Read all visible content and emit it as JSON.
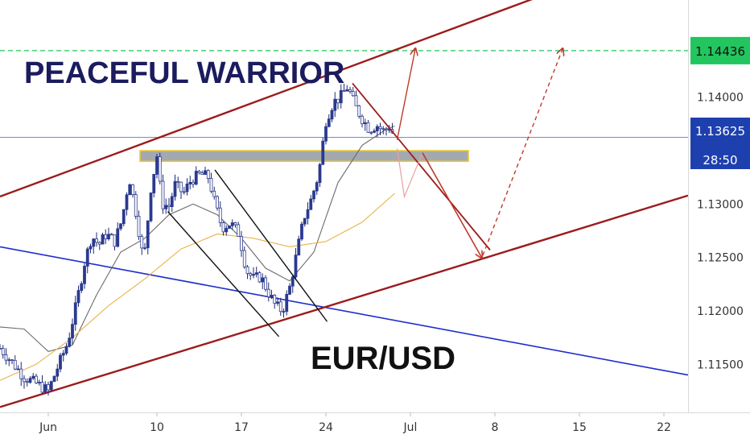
{
  "chart_data": {
    "type": "candlestick",
    "title": "PEACEFUL WARRIOR",
    "symbol_label": "EUR/USD",
    "x_axis": {
      "ticks": [
        {
          "label": "Jun",
          "day": 0
        },
        {
          "label": "10",
          "day": 9
        },
        {
          "label": "17",
          "day": 16
        },
        {
          "label": "24",
          "day": 23
        },
        {
          "label": "Jul",
          "day": 30
        },
        {
          "label": "8",
          "day": 37
        },
        {
          "label": "15",
          "day": 44
        },
        {
          "label": "22",
          "day": 51
        }
      ],
      "range_days": [
        -4,
        53
      ]
    },
    "y_axis": {
      "ticks": [
        "1.11500",
        "1.12000",
        "1.12500",
        "1.13000",
        "1.14000"
      ],
      "tick_values": [
        1.115,
        1.12,
        1.125,
        1.13,
        1.14
      ],
      "ylim": [
        1.1105,
        1.1491
      ]
    },
    "price_labels": {
      "target": {
        "text": "1.14436",
        "value": 1.14436,
        "color": "#22c55e"
      },
      "current": {
        "text": "1.13625",
        "value": 1.13625,
        "color": "#1e40af"
      },
      "countdown": {
        "text": "28:50",
        "color": "#1e40af"
      }
    },
    "series": [
      {
        "name": "",
        "kind": "price",
        "points": [
          [
            -4,
            1.1165
          ],
          [
            -3,
            1.1152
          ],
          [
            -2,
            1.1138
          ],
          [
            -1,
            1.1132
          ],
          [
            0,
            1.1125
          ],
          [
            0.8,
            1.1148
          ],
          [
            1.6,
            1.117
          ],
          [
            2.3,
            1.1205
          ],
          [
            3,
            1.1245
          ],
          [
            3.6,
            1.127
          ],
          [
            4.2,
            1.1262
          ],
          [
            4.8,
            1.1272
          ],
          [
            5.5,
            1.1265
          ],
          [
            6.1,
            1.1285
          ],
          [
            6.7,
            1.1325
          ],
          [
            7.3,
            1.129
          ],
          [
            7.9,
            1.1245
          ],
          [
            8.5,
            1.1315
          ],
          [
            9,
            1.1345
          ],
          [
            9.4,
            1.13
          ],
          [
            10,
            1.1298
          ],
          [
            10.5,
            1.1318
          ],
          [
            11.2,
            1.131
          ],
          [
            11.8,
            1.1322
          ],
          [
            12.6,
            1.1328
          ],
          [
            13.3,
            1.1325
          ],
          [
            13.8,
            1.13
          ],
          [
            14.4,
            1.1278
          ],
          [
            15.1,
            1.1282
          ],
          [
            15.8,
            1.1272
          ],
          [
            16.4,
            1.1238
          ],
          [
            17,
            1.123
          ],
          [
            17.6,
            1.1232
          ],
          [
            18.2,
            1.1218
          ],
          [
            18.8,
            1.1205
          ],
          [
            19.4,
            1.12
          ],
          [
            20,
            1.1222
          ],
          [
            20.6,
            1.1255
          ],
          [
            21.2,
            1.1288
          ],
          [
            21.8,
            1.1305
          ],
          [
            22.4,
            1.1328
          ],
          [
            23,
            1.1378
          ],
          [
            23.6,
            1.1395
          ],
          [
            24.2,
            1.14
          ],
          [
            24.8,
            1.141
          ],
          [
            25.4,
            1.1392
          ],
          [
            26,
            1.138
          ],
          [
            26.6,
            1.137
          ],
          [
            27.2,
            1.1374
          ],
          [
            27.8,
            1.1368
          ],
          [
            28.3,
            1.1373
          ],
          [
            28.7,
            1.1361
          ]
        ]
      },
      {
        "name": "",
        "kind": "ma-fast",
        "color": "#6b6b6b",
        "points": [
          [
            -4,
            1.1185
          ],
          [
            -2,
            1.1183
          ],
          [
            0,
            1.1162
          ],
          [
            2,
            1.1168
          ],
          [
            4,
            1.1215
          ],
          [
            6,
            1.1255
          ],
          [
            8,
            1.1268
          ],
          [
            10,
            1.129
          ],
          [
            12,
            1.13
          ],
          [
            14,
            1.129
          ],
          [
            16,
            1.1268
          ],
          [
            18,
            1.124
          ],
          [
            20,
            1.1228
          ],
          [
            22,
            1.1255
          ],
          [
            24,
            1.132
          ],
          [
            26,
            1.1355
          ],
          [
            28,
            1.137
          ],
          [
            28.7,
            1.1373
          ]
        ]
      },
      {
        "name": "",
        "kind": "ma-slow",
        "color": "#e8b34a",
        "points": [
          [
            -4,
            1.1135
          ],
          [
            -1,
            1.115
          ],
          [
            2,
            1.1175
          ],
          [
            5,
            1.1205
          ],
          [
            8,
            1.123
          ],
          [
            11,
            1.1258
          ],
          [
            14,
            1.1272
          ],
          [
            17,
            1.1268
          ],
          [
            20,
            1.126
          ],
          [
            23,
            1.1265
          ],
          [
            26,
            1.1283
          ],
          [
            28.7,
            1.131
          ]
        ]
      }
    ],
    "drawings": {
      "channel_upper": [
        [
          -4,
          1.1307
        ],
        [
          43,
          1.1504
        ]
      ],
      "channel_lower": [
        [
          -4,
          1.111
        ],
        [
          53,
          1.1308
        ]
      ],
      "blue_trend": [
        [
          -4,
          1.126
        ],
        [
          53,
          1.114
        ]
      ],
      "support_zone": {
        "day_from": 7.6,
        "day_to": 34.8,
        "value_low": 1.134,
        "value_high": 1.135
      },
      "descending_line": [
        [
          25.2,
          1.1413
        ],
        [
          36.6,
          1.1257
        ]
      ],
      "black_channel_upper": [
        [
          13.8,
          1.1332
        ],
        [
          23.1,
          1.119
        ]
      ],
      "black_channel_lower": [
        [
          9.9,
          1.1293
        ],
        [
          19.1,
          1.1176
        ]
      ],
      "arrow_up_target": [
        [
          28.9,
          1.136
        ],
        [
          30.4,
          1.1445
        ]
      ],
      "arrow_down_main": [
        [
          31.0,
          1.1348
        ],
        [
          35.9,
          1.125
        ]
      ],
      "arrow_up_dashed": [
        [
          36.0,
          1.1252
        ],
        [
          42.6,
          1.1445
        ]
      ],
      "faint_path": [
        [
          28.9,
          1.1352
        ],
        [
          29.5,
          1.1307
        ],
        [
          31.0,
          1.1348
        ]
      ],
      "target_line_value": 1.14436,
      "current_line_value": 1.13625
    },
    "grid": false,
    "legend": "none"
  }
}
